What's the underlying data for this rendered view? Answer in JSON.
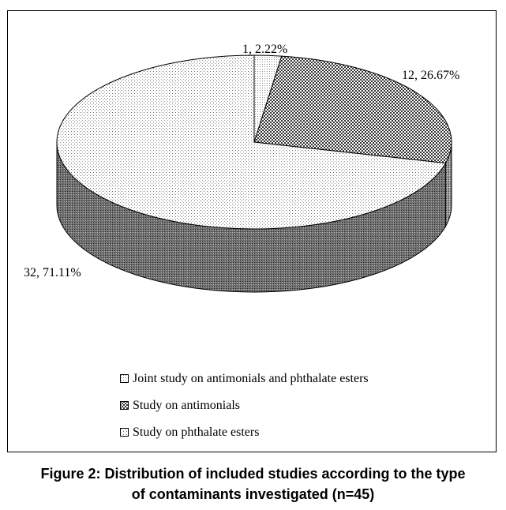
{
  "chart_data": {
    "type": "pie",
    "style": "3d",
    "slices": [
      {
        "label": "Joint study on antimonials and phthalate esters",
        "count": 1,
        "percent": 2.22,
        "data_label": "1, 2.22%",
        "pattern": "dots-fine"
      },
      {
        "label": "Study on antimonials",
        "count": 12,
        "percent": 26.67,
        "data_label": "12, 26.67%",
        "pattern": "checker"
      },
      {
        "label": "Study on phthalate esters",
        "count": 32,
        "percent": 71.11,
        "data_label": "32, 71.11%",
        "pattern": "dots"
      }
    ],
    "legend_position": "bottom",
    "title": "Figure 2: Distribution of included studies according to the type of contaminants investigated (n=45)"
  },
  "caption": {
    "line1": "Figure 2: Distribution of included studies according to the type",
    "line2": "of contaminants investigated (n=45)"
  }
}
